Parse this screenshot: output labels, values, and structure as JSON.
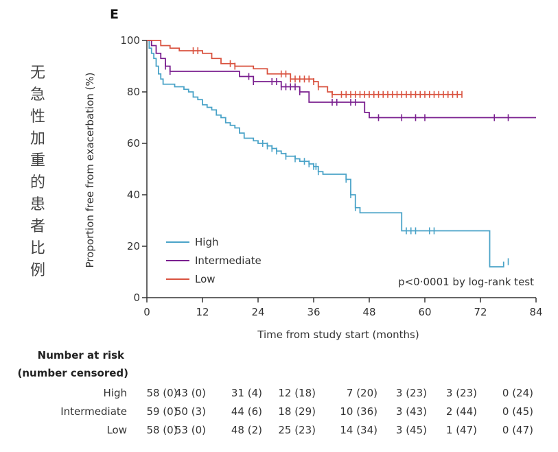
{
  "panel_label": "E",
  "side_annotation": [
    "无",
    "急",
    "性",
    "加",
    "重",
    "的",
    "患",
    "者",
    "比",
    "例"
  ],
  "colors": {
    "high": "#4aa3c8",
    "intermediate": "#7a1f8f",
    "low": "#d9523f",
    "axis": "#333333"
  },
  "chart_data": {
    "type": "line",
    "subtype": "kaplan-meier",
    "xlabel": "Time from study start (months)",
    "ylabel": "Proportion free from exacerbation (%)",
    "xlim": [
      0,
      84
    ],
    "ylim": [
      0,
      100
    ],
    "xticks": [
      0,
      12,
      24,
      36,
      48,
      60,
      72,
      84
    ],
    "yticks": [
      0,
      20,
      40,
      60,
      80,
      100
    ],
    "annotation": "p<0·0001 by log-rank test",
    "legend_position": "bottom-left",
    "series": [
      {
        "name": "High",
        "color": "#4aa3c8",
        "steps": [
          [
            0,
            100
          ],
          [
            0.5,
            97
          ],
          [
            1,
            95
          ],
          [
            1.5,
            93
          ],
          [
            2,
            90
          ],
          [
            2.5,
            87
          ],
          [
            3,
            85
          ],
          [
            3.5,
            83
          ],
          [
            6,
            82
          ],
          [
            8,
            81
          ],
          [
            9,
            80
          ],
          [
            10,
            78
          ],
          [
            11,
            77
          ],
          [
            12,
            75
          ],
          [
            13,
            74
          ],
          [
            14,
            73
          ],
          [
            15,
            71
          ],
          [
            16,
            70
          ],
          [
            17,
            68
          ],
          [
            18,
            67
          ],
          [
            19,
            66
          ],
          [
            20,
            64
          ],
          [
            21,
            62
          ],
          [
            23,
            61
          ],
          [
            24,
            60
          ],
          [
            26,
            59
          ],
          [
            27,
            58
          ],
          [
            28,
            57
          ],
          [
            29,
            56
          ],
          [
            30,
            55
          ],
          [
            32,
            54
          ],
          [
            33,
            53
          ],
          [
            35,
            52
          ],
          [
            36,
            51
          ],
          [
            37,
            49
          ],
          [
            38,
            48
          ],
          [
            43,
            46
          ],
          [
            44,
            40
          ],
          [
            45,
            35
          ],
          [
            46,
            33
          ],
          [
            55,
            26
          ],
          [
            62,
            26
          ],
          [
            74,
            26
          ],
          [
            74,
            12
          ],
          [
            77,
            12
          ],
          [
            77,
            14
          ]
        ],
        "censor_times": [
          25,
          26,
          27,
          28,
          30,
          32,
          34,
          35,
          36,
          36.5,
          37,
          43,
          44,
          45,
          56,
          57,
          58,
          61,
          62,
          78
        ]
      },
      {
        "name": "Intermediate",
        "color": "#7a1f8f",
        "steps": [
          [
            0,
            100
          ],
          [
            1,
            98
          ],
          [
            2,
            95
          ],
          [
            3,
            93
          ],
          [
            4,
            90
          ],
          [
            5,
            88
          ],
          [
            13,
            88
          ],
          [
            20,
            86
          ],
          [
            23,
            84
          ],
          [
            29,
            82
          ],
          [
            33,
            80
          ],
          [
            35,
            76
          ],
          [
            45,
            76
          ],
          [
            47,
            72
          ],
          [
            48,
            70
          ],
          [
            60,
            70
          ],
          [
            84,
            70
          ]
        ],
        "censor_times": [
          4,
          5,
          22,
          23,
          27,
          28,
          29,
          30,
          31,
          32,
          33,
          40,
          41,
          44,
          45,
          50,
          55,
          58,
          60,
          75,
          78
        ]
      },
      {
        "name": "Low",
        "color": "#d9523f",
        "steps": [
          [
            0,
            100
          ],
          [
            3,
            98
          ],
          [
            5,
            97
          ],
          [
            7,
            96
          ],
          [
            12,
            95
          ],
          [
            14,
            93
          ],
          [
            16,
            91
          ],
          [
            19,
            90
          ],
          [
            23,
            89
          ],
          [
            26,
            87
          ],
          [
            31,
            85
          ],
          [
            36,
            84
          ],
          [
            37,
            82
          ],
          [
            39,
            80
          ],
          [
            40,
            79
          ],
          [
            45,
            79
          ],
          [
            68,
            79
          ]
        ],
        "censor_times": [
          10,
          11,
          18,
          19,
          29,
          30,
          31,
          32,
          33,
          34,
          35,
          36,
          37,
          40,
          42,
          43,
          44,
          45,
          46,
          47,
          48,
          49,
          50,
          51,
          52,
          53,
          54,
          55,
          56,
          57,
          58,
          59,
          60,
          61,
          62,
          63,
          64,
          65,
          66,
          67,
          68
        ]
      }
    ]
  },
  "risk_table": {
    "title_line1": "Number at risk",
    "title_line2": "(number censored)",
    "rows": [
      {
        "label": "High",
        "values": [
          "58 (0)",
          "43 (0)",
          "31 (4)",
          "12 (18)",
          "7 (20)",
          "3 (23)",
          "3 (23)",
          "0 (24)"
        ]
      },
      {
        "label": "Intermediate",
        "values": [
          "59 (0)",
          "50 (3)",
          "44 (6)",
          "18 (29)",
          "10 (36)",
          "3 (43)",
          "2 (44)",
          "0 (45)"
        ]
      },
      {
        "label": "Low",
        "values": [
          "58 (0)",
          "53 (0)",
          "48 (2)",
          "25 (23)",
          "14 (34)",
          "3 (45)",
          "1 (47)",
          "0 (47)"
        ]
      }
    ]
  }
}
